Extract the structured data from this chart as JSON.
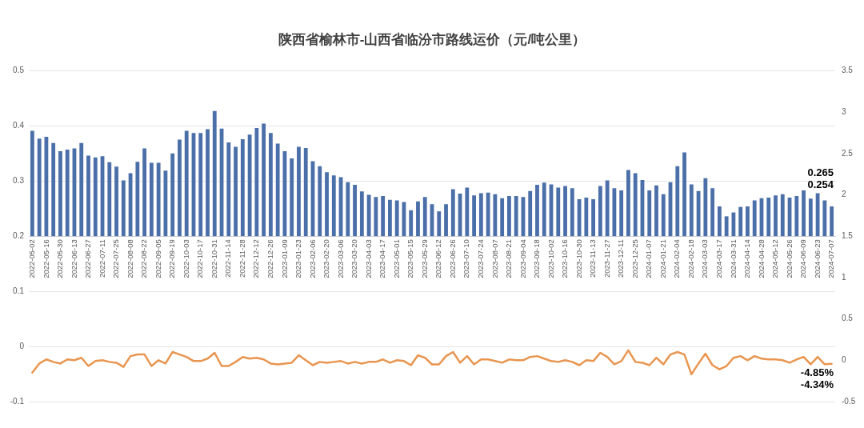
{
  "chart_data": {
    "type": "bar",
    "title": "陕西省榆林市-山西省临汾市路线运价（元/吨公里）",
    "categories": [
      "2022-05-02",
      null,
      "2022-05-16",
      null,
      "2022-05-30",
      null,
      "2022-06-13",
      null,
      "2022-06-27",
      null,
      "2022-07-11",
      null,
      "2022-07-25",
      null,
      "2022-08-08",
      null,
      "2022-08-22",
      null,
      "2022-09-05",
      null,
      "2022-09-19",
      null,
      "2022-10-03",
      null,
      "2022-10-17",
      null,
      "2022-10-31",
      null,
      "2022-11-14",
      null,
      "2022-11-28",
      null,
      "2022-12-12",
      null,
      "2022-12-26",
      null,
      "2023-01-09",
      null,
      "2023-01-23",
      null,
      "2023-02-06",
      null,
      "2023-02-20",
      null,
      "2023-03-06",
      null,
      "2023-03-20",
      null,
      "2023-04-03",
      null,
      "2023-04-17",
      null,
      "2023-05-01",
      null,
      "2023-05-15",
      null,
      "2023-05-29",
      null,
      "2023-06-12",
      null,
      "2023-06-26",
      null,
      "2023-07-10",
      null,
      "2023-07-24",
      null,
      "2023-08-07",
      null,
      "2023-08-21",
      null,
      "2023-09-04",
      null,
      "2023-09-18",
      null,
      "2023-10-02",
      null,
      "2023-10-16",
      null,
      "2023-10-30",
      null,
      "2023-11-13",
      null,
      "2023-11-27",
      null,
      "2023-12-11",
      null,
      "2023-12-25",
      null,
      "2024-01-07",
      null,
      "2024-01-21",
      null,
      "2024-02-04",
      null,
      "2024-02-18",
      null,
      "2024-03-03",
      null,
      "2024-03-17",
      null,
      "2024-03-31",
      null,
      "2024-04-14",
      null,
      "2024-04-28",
      null,
      "2024-05-12",
      null,
      "2024-05-26",
      null,
      "2024-06-09",
      null,
      "2024-06-23",
      null,
      "2024-07-07"
    ],
    "series": [
      {
        "color": "#4b6fa8",
        "base": [
          0.2,
          0.2,
          0.2,
          0.2,
          0.2,
          0.2,
          0.2,
          0.2,
          0.2,
          0.2,
          0.2,
          0.2,
          0.2,
          0.2,
          0.2,
          0.2,
          0.2,
          0.2,
          0.2,
          0.2,
          0.2,
          0.2,
          0.2,
          0.2,
          0.2,
          0.2,
          0.2,
          0.2,
          0.2,
          0.2,
          0.2,
          0.2,
          0.2,
          0.2,
          0.2,
          0.2,
          0.2,
          0.2,
          0.2,
          0.2,
          0.2,
          0.2,
          0.2,
          0.2,
          0.2,
          0.2,
          0.2,
          0.2,
          0.2,
          0.2,
          0.2,
          0.2,
          0.2,
          0.2,
          0.2,
          0.2,
          0.2,
          0.2,
          0.2,
          0.2,
          0.2,
          0.2,
          0.2,
          0.2,
          0.2,
          0.2,
          0.2,
          0.2,
          0.2,
          0.2,
          0.2,
          0.2,
          0.2,
          0.2,
          0.2,
          0.2,
          0.2,
          0.2,
          0.2,
          0.2,
          0.2,
          0.2,
          0.2,
          0.2,
          0.2,
          0.2,
          0.2,
          0.2,
          0.2,
          0.2,
          0.2,
          0.2,
          0.2,
          0.2,
          0.2,
          0.2,
          0.2,
          0.2,
          0.2,
          0.2,
          0.2,
          0.2,
          0.2,
          0.2,
          0.2,
          0.2,
          0.2,
          0.2,
          0.2,
          0.2,
          0.2,
          0.2,
          0.2,
          0.2,
          0.2
        ],
        "values": [
          0.191,
          0.177,
          0.18,
          0.169,
          0.154,
          0.157,
          0.159,
          0.169,
          0.146,
          0.143,
          0.145,
          0.134,
          0.126,
          0.101,
          0.114,
          0.135,
          0.159,
          0.133,
          0.133,
          0.119,
          0.15,
          0.175,
          0.191,
          0.187,
          0.187,
          0.194,
          0.227,
          0.195,
          0.17,
          0.162,
          0.176,
          0.184,
          0.196,
          0.204,
          0.187,
          0.168,
          0.154,
          0.141,
          0.162,
          0.16,
          0.136,
          0.127,
          0.116,
          0.11,
          0.107,
          0.098,
          0.093,
          0.081,
          0.075,
          0.071,
          0.073,
          0.066,
          0.065,
          0.062,
          0.047,
          0.063,
          0.071,
          0.058,
          0.045,
          0.058,
          0.085,
          0.077,
          0.088,
          0.074,
          0.078,
          0.079,
          0.076,
          0.069,
          0.073,
          0.073,
          0.071,
          0.082,
          0.093,
          0.097,
          0.094,
          0.088,
          0.091,
          0.087,
          0.067,
          0.07,
          0.067,
          0.091,
          0.101,
          0.087,
          0.083,
          0.12,
          0.114,
          0.102,
          0.083,
          0.092,
          0.076,
          0.098,
          0.127,
          0.152,
          0.094,
          0.082,
          0.105,
          0.087,
          0.054,
          0.036,
          0.043,
          0.053,
          0.054,
          0.065,
          0.069,
          0.07,
          0.074,
          0.076,
          0.07,
          0.073,
          0.083,
          0.068,
          0.078,
          0.065,
          0.054
        ],
        "value_labels": [
          null,
          null,
          null,
          null,
          null,
          null,
          null,
          null,
          null,
          null,
          null,
          null,
          null,
          null,
          null,
          null,
          null,
          null,
          null,
          null,
          null,
          null,
          null,
          null,
          null,
          null,
          null,
          null,
          null,
          null,
          null,
          null,
          null,
          null,
          null,
          null,
          null,
          null,
          null,
          null,
          null,
          null,
          null,
          null,
          null,
          null,
          null,
          null,
          null,
          null,
          null,
          null,
          null,
          null,
          null,
          null,
          null,
          null,
          null,
          null,
          null,
          null,
          null,
          null,
          null,
          null,
          null,
          null,
          null,
          null,
          null,
          null,
          null,
          null,
          null,
          null,
          null,
          null,
          null,
          null,
          null,
          null,
          null,
          null,
          null,
          null,
          null,
          null,
          null,
          null,
          null,
          null,
          null,
          null,
          null,
          null,
          null,
          null,
          null,
          null,
          null,
          null,
          null,
          null,
          null,
          null,
          null,
          null,
          null,
          null,
          null,
          null,
          null,
          "0.265",
          "0.254"
        ]
      },
      {
        "type": "line",
        "axis": "y2",
        "color": "#e8954f",
        "values": [
          -0.15,
          -0.04,
          0.01,
          -0.02,
          -0.04,
          0.01,
          0,
          0.03,
          -0.07,
          -0.01,
          0,
          -0.02,
          -0.03,
          -0.08,
          0.05,
          0.07,
          0.07,
          -0.07,
          0,
          -0.04,
          0.1,
          0.07,
          0.04,
          -0.01,
          -0.01,
          0.02,
          0.09,
          -0.07,
          -0.07,
          -0.02,
          0.04,
          0.02,
          0.03,
          0.01,
          -0.04,
          -0.05,
          -0.04,
          -0.03,
          0.06,
          0,
          -0.06,
          -0.02,
          -0.03,
          -0.02,
          -0.01,
          -0.04,
          -0.02,
          -0.04,
          -0.02,
          -0.02,
          0.01,
          -0.03,
          0,
          -0.01,
          -0.06,
          0.06,
          0.03,
          -0.05,
          -0.05,
          0.05,
          0.1,
          -0.03,
          0.05,
          -0.05,
          0.01,
          0.01,
          -0.01,
          -0.03,
          0.01,
          0,
          0,
          0.04,
          0.05,
          0.02,
          -0.01,
          -0.02,
          0,
          -0.02,
          -0.06,
          0,
          -0.01,
          0.09,
          0.04,
          -0.05,
          -0.01,
          0.12,
          -0.02,
          -0.03,
          -0.06,
          0.03,
          -0.05,
          0.07,
          0.1,
          0.07,
          -0.17,
          -0.04,
          0.08,
          -0.06,
          -0.11,
          -0.07,
          0.03,
          0.05,
          0,
          0.05,
          0.02,
          0.01,
          0.01,
          0,
          -0.03,
          0.01,
          0.04,
          -0.05,
          0.04,
          -0.0485,
          -0.0434
        ],
        "value_labels": [
          null,
          null,
          null,
          null,
          null,
          null,
          null,
          null,
          null,
          null,
          null,
          null,
          null,
          null,
          null,
          null,
          null,
          null,
          null,
          null,
          null,
          null,
          null,
          null,
          null,
          null,
          null,
          null,
          null,
          null,
          null,
          null,
          null,
          null,
          null,
          null,
          null,
          null,
          null,
          null,
          null,
          null,
          null,
          null,
          null,
          null,
          null,
          null,
          null,
          null,
          null,
          null,
          null,
          null,
          null,
          null,
          null,
          null,
          null,
          null,
          null,
          null,
          null,
          null,
          null,
          null,
          null,
          null,
          null,
          null,
          null,
          null,
          null,
          null,
          null,
          null,
          null,
          null,
          null,
          null,
          null,
          null,
          null,
          null,
          null,
          null,
          null,
          null,
          null,
          null,
          null,
          null,
          null,
          null,
          null,
          null,
          null,
          null,
          null,
          null,
          null,
          null,
          null,
          null,
          null,
          null,
          null,
          null,
          null,
          null,
          null,
          null,
          null,
          "-4.85%",
          "-4.34%"
        ]
      }
    ],
    "ylim": [
      -0.1,
      0.5
    ],
    "yticks": [
      -0.1,
      0,
      0.1,
      0.2,
      0.3,
      0.4,
      0.5
    ],
    "y2lim": [
      -0.5,
      3.5
    ],
    "y2ticks": [
      -0.5,
      0,
      0.5,
      1,
      1.5,
      2,
      2.5,
      3,
      3.5
    ],
    "grid": "y",
    "legend": false,
    "marker": "none"
  }
}
